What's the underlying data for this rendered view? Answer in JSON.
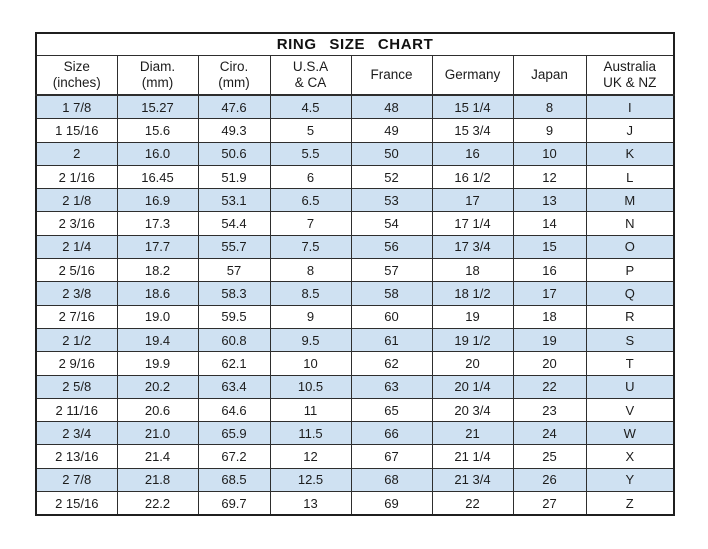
{
  "title": "RING  SIZE  CHART",
  "colors": {
    "stripe": "#cfe1f2",
    "border": "#1f1f1f",
    "text": "#1c1c1c"
  },
  "header_lines": [
    [
      "Size",
      "(inches)"
    ],
    [
      "Diam.",
      "(mm)"
    ],
    [
      "Ciro.",
      "(mm)"
    ],
    [
      "U.S.A",
      "& CA"
    ],
    [
      "France"
    ],
    [
      "Germany"
    ],
    [
      "Japan"
    ],
    [
      "Australia",
      "UK & NZ"
    ]
  ],
  "chart_data": {
    "type": "table",
    "title": "RING SIZE CHART",
    "columns": [
      "Size (inches)",
      "Diam. (mm)",
      "Ciro. (mm)",
      "U.S.A & CA",
      "France",
      "Germany",
      "Japan",
      "Australia UK & NZ"
    ],
    "rows": [
      [
        "1 7/8",
        "15.27",
        "47.6",
        "4.5",
        "48",
        "15 1/4",
        "8",
        "I"
      ],
      [
        "1 15/16",
        "15.6",
        "49.3",
        "5",
        "49",
        "15 3/4",
        "9",
        "J"
      ],
      [
        "2",
        "16.0",
        "50.6",
        "5.5",
        "50",
        "16",
        "10",
        "K"
      ],
      [
        "2 1/16",
        "16.45",
        "51.9",
        "6",
        "52",
        "16 1/2",
        "12",
        "L"
      ],
      [
        "2 1/8",
        "16.9",
        "53.1",
        "6.5",
        "53",
        "17",
        "13",
        "M"
      ],
      [
        "2 3/16",
        "17.3",
        "54.4",
        "7",
        "54",
        "17 1/4",
        "14",
        "N"
      ],
      [
        "2 1/4",
        "17.7",
        "55.7",
        "7.5",
        "56",
        "17 3/4",
        "15",
        "O"
      ],
      [
        "2 5/16",
        "18.2",
        "57",
        "8",
        "57",
        "18",
        "16",
        "P"
      ],
      [
        "2 3/8",
        "18.6",
        "58.3",
        "8.5",
        "58",
        "18 1/2",
        "17",
        "Q"
      ],
      [
        "2 7/16",
        "19.0",
        "59.5",
        "9",
        "60",
        "19",
        "18",
        "R"
      ],
      [
        "2 1/2",
        "19.4",
        "60.8",
        "9.5",
        "61",
        "19 1/2",
        "19",
        "S"
      ],
      [
        "2 9/16",
        "19.9",
        "62.1",
        "10",
        "62",
        "20",
        "20",
        "T"
      ],
      [
        "2 5/8",
        "20.2",
        "63.4",
        "10.5",
        "63",
        "20 1/4",
        "22",
        "U"
      ],
      [
        "2 11/16",
        "20.6",
        "64.6",
        "11",
        "65",
        "20 3/4",
        "23",
        "V"
      ],
      [
        "2 3/4",
        "21.0",
        "65.9",
        "11.5",
        "66",
        "21",
        "24",
        "W"
      ],
      [
        "2 13/16",
        "21.4",
        "67.2",
        "12",
        "67",
        "21 1/4",
        "25",
        "X"
      ],
      [
        "2 7/8",
        "21.8",
        "68.5",
        "12.5",
        "68",
        "21 3/4",
        "26",
        "Y"
      ],
      [
        "2 15/16",
        "22.2",
        "69.7",
        "13",
        "69",
        "22",
        "27",
        "Z"
      ]
    ],
    "layout": {
      "stripe_pattern": "odd rows highlighted light blue starting with first data row",
      "grid": true
    }
  }
}
